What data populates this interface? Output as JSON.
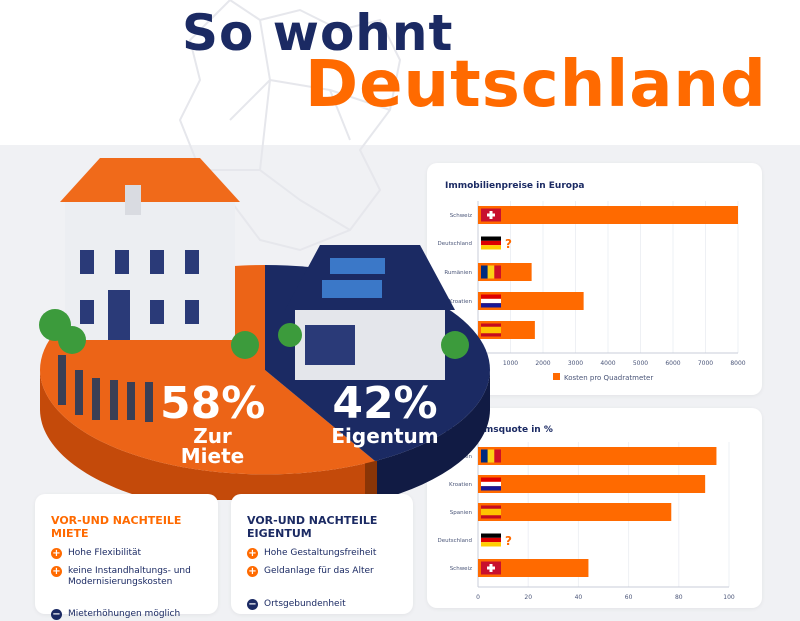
{
  "title": {
    "line1": "So wohnt",
    "line2": "Deutschland"
  },
  "colors": {
    "orange": "#ff6a00",
    "navy": "#1b2a63"
  },
  "pie": {
    "miete": {
      "value": 58,
      "label": "58%",
      "caption": "Zur Miete"
    },
    "eigentum": {
      "value": 42,
      "label": "42%",
      "caption": "Eigentum"
    }
  },
  "chart_data": [
    {
      "type": "bar",
      "orientation": "horizontal",
      "title": "Immobilienpreise in Europa",
      "categories": [
        "Schweiz",
        "Deutschland",
        "Rumänien",
        "Kroatien",
        "Spanien"
      ],
      "values": [
        8000,
        null,
        1650,
        3250,
        1750
      ],
      "missing_marker": "?",
      "series": [
        {
          "name": "Kosten pro Quadratmeter"
        }
      ],
      "xticks": [
        "1000",
        "2000",
        "3000",
        "4000",
        "5000",
        "6000",
        "7000",
        "8000"
      ],
      "xlim": [
        0,
        8000
      ],
      "legend": "bottom",
      "grid": true
    },
    {
      "type": "bar",
      "orientation": "horizontal",
      "title": "Eigentumsquote in %",
      "categories": [
        "Rumänien",
        "Kroatien",
        "Spanien",
        "Deutschland",
        "Schweiz"
      ],
      "values": [
        95,
        90.5,
        77,
        null,
        44
      ],
      "missing_marker": "?",
      "xticks": [
        "0",
        "20",
        "40",
        "60",
        "80",
        "100"
      ],
      "xlim": [
        0,
        100
      ],
      "grid": true
    }
  ],
  "flags": {
    "Schweiz": "ch",
    "Deutschland": "de",
    "Rumänien": "ro",
    "Kroatien": "hr",
    "Spanien": "es"
  },
  "pros_cons": [
    {
      "title": "VOR-UND NACHTEILE MIETE",
      "pros": [
        "Hohe Flexibilität",
        "keine Instandhaltungs- und Modernisierungskosten"
      ],
      "cons": [
        "Mieterhöhungen möglich"
      ]
    },
    {
      "title": "VOR-UND NACHTEILE EIGENTUM",
      "pros": [
        "Hohe Gestaltungsfreiheit",
        "Geldanlage für das Alter"
      ],
      "cons": [
        "Ortsgebundenheit"
      ]
    }
  ]
}
